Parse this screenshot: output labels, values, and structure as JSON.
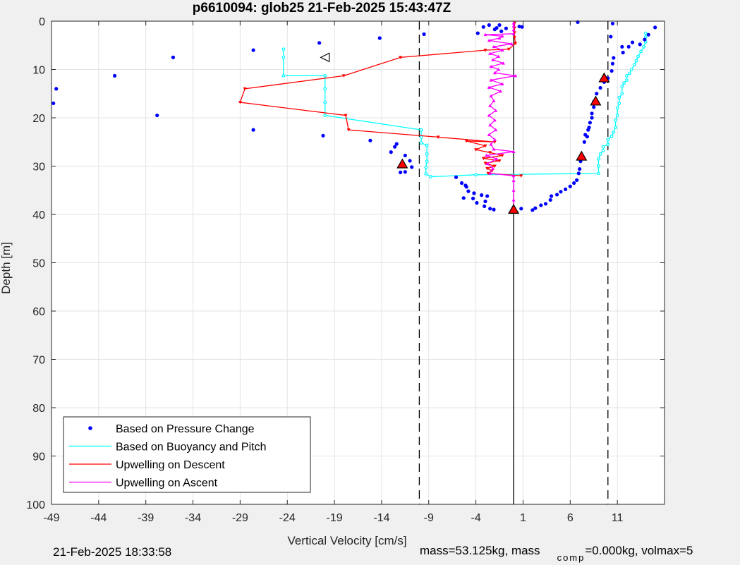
{
  "chart_data": {
    "type": "scatter",
    "title": "p6610094: glob25 21-Feb-2025 15:43:47Z",
    "xlabel": "Vertical Velocity [cm/s]",
    "ylabel": "Depth [m]",
    "xlim": [
      -49,
      16
    ],
    "ylim": [
      0,
      100
    ],
    "y_reversed": true,
    "xticks": [
      -49,
      -44,
      -39,
      -34,
      -29,
      -24,
      -19,
      -14,
      -9,
      -4,
      1,
      6,
      11
    ],
    "yticks": [
      0,
      10,
      20,
      30,
      40,
      50,
      60,
      70,
      80,
      90,
      100
    ],
    "grid": true,
    "legend_location": "bottom-left",
    "vertical_lines": [
      {
        "x": -10,
        "style": "dashed"
      },
      {
        "x": 0,
        "style": "solid"
      },
      {
        "x": 10,
        "style": "dashed"
      }
    ],
    "series": [
      {
        "name": "Based on Pressure Change",
        "style": "dots",
        "color": "#0000ff",
        "points": [
          [
            -48.8,
            17
          ],
          [
            -48.5,
            14
          ],
          [
            -42.3,
            11.3
          ],
          [
            -37.8,
            19.5
          ],
          [
            -36.1,
            7.5
          ],
          [
            -27.6,
            6
          ],
          [
            -27.6,
            22.5
          ],
          [
            -20.6,
            4.5
          ],
          [
            -20.2,
            23.7
          ],
          [
            -14.2,
            3.5
          ],
          [
            -15.2,
            24.7
          ],
          [
            -12.6,
            26
          ],
          [
            -12.4,
            25.4
          ],
          [
            -13,
            27.1
          ],
          [
            -11.5,
            27.8
          ],
          [
            -11,
            28.9
          ],
          [
            -10.8,
            30.2
          ],
          [
            -12,
            31.3
          ],
          [
            -11.5,
            31.2
          ],
          [
            -9.5,
            2.7
          ],
          [
            -3.8,
            2.5
          ],
          [
            -6.1,
            32.3
          ],
          [
            -5.5,
            33.5
          ],
          [
            -5.1,
            34
          ],
          [
            -4.8,
            35.2
          ],
          [
            -4.3,
            36.7
          ],
          [
            -3.9,
            37.6
          ],
          [
            -3.1,
            38.3
          ],
          [
            -2.5,
            38.8
          ],
          [
            -2.1,
            39
          ],
          [
            -5,
            34.3
          ],
          [
            -5.3,
            36.6
          ],
          [
            -4.2,
            35.6
          ],
          [
            -3.4,
            36
          ],
          [
            -3,
            37.3
          ],
          [
            -2.8,
            36.2
          ],
          [
            -3.2,
            1.2
          ],
          [
            -2.6,
            0.8
          ],
          [
            -2,
            1.7
          ],
          [
            -1.8,
            1.4
          ],
          [
            -1.3,
            2.1
          ],
          [
            -0.8,
            1.5
          ],
          [
            0.6,
            1.1
          ],
          [
            0.9,
            1.2
          ],
          [
            -1.5,
            0.8
          ],
          [
            0.8,
            38.8
          ],
          [
            2,
            39.1
          ],
          [
            2.3,
            38.7
          ],
          [
            2.9,
            38.1
          ],
          [
            3.4,
            37.8
          ],
          [
            3.9,
            37
          ],
          [
            4,
            36.2
          ],
          [
            4.6,
            35.9
          ],
          [
            5,
            35.3
          ],
          [
            5.5,
            34.8
          ],
          [
            6,
            34.2
          ],
          [
            6.4,
            33.5
          ],
          [
            6.7,
            32.9
          ],
          [
            6.9,
            31.5
          ],
          [
            7,
            30.6
          ],
          [
            7.1,
            29
          ],
          [
            7.2,
            27.7
          ],
          [
            7.5,
            25
          ],
          [
            7.6,
            23.5
          ],
          [
            7.8,
            23.9
          ],
          [
            7.9,
            22.5
          ],
          [
            8,
            22
          ],
          [
            8.1,
            21
          ],
          [
            8.3,
            20
          ],
          [
            8.3,
            19.1
          ],
          [
            8.5,
            17.8
          ],
          [
            8.5,
            16.7
          ],
          [
            8.8,
            15
          ],
          [
            9.2,
            13.8
          ],
          [
            9.6,
            12.6
          ],
          [
            10,
            11.8
          ],
          [
            10.4,
            10.3
          ],
          [
            10.5,
            8.8
          ],
          [
            10.6,
            7.6
          ],
          [
            11.6,
            6.5
          ],
          [
            12.2,
            5.3
          ],
          [
            12.6,
            4.4
          ],
          [
            13.4,
            4.8
          ],
          [
            13.9,
            3.8
          ],
          [
            14.3,
            2.8
          ],
          [
            15,
            1.3
          ],
          [
            11.5,
            5.3
          ],
          [
            10.3,
            3.2
          ],
          [
            10.5,
            0.5
          ],
          [
            6.8,
            0.2
          ]
        ]
      },
      {
        "name": "Based on Buoyancy and Pitch",
        "style": "line-markers",
        "color": "#00ffff",
        "points": [
          [
            -24.4,
            5.8
          ],
          [
            -24.4,
            7.5
          ],
          [
            -24.4,
            11.3
          ],
          [
            -20,
            11.3
          ],
          [
            -20,
            14
          ],
          [
            -20,
            16.8
          ],
          [
            -20,
            19.5
          ],
          [
            -9.8,
            22.5
          ],
          [
            -9.8,
            24
          ],
          [
            -9.8,
            25.2
          ],
          [
            -9.2,
            25.7
          ],
          [
            -9.2,
            27.5
          ],
          [
            -9.2,
            29
          ],
          [
            -9.3,
            30.3
          ],
          [
            -9.3,
            31.6
          ],
          [
            -8.8,
            32.2
          ],
          [
            -4,
            31.8
          ],
          [
            9,
            31.5
          ],
          [
            9,
            30
          ],
          [
            9,
            28.5
          ],
          [
            9.2,
            27.5
          ],
          [
            9.5,
            26.8
          ],
          [
            9.5,
            26
          ],
          [
            10,
            25.5
          ],
          [
            10,
            24.5
          ],
          [
            10.4,
            23.8
          ],
          [
            10.6,
            23
          ],
          [
            10.8,
            22
          ],
          [
            10.8,
            20.5
          ],
          [
            11,
            19.5
          ],
          [
            11,
            18
          ],
          [
            11.2,
            17
          ],
          [
            11.2,
            15.8
          ],
          [
            11.5,
            15
          ],
          [
            11.5,
            13.5
          ],
          [
            11.7,
            12.8
          ],
          [
            12,
            12.2
          ],
          [
            12,
            11.3
          ],
          [
            12.3,
            10.8
          ],
          [
            12.5,
            10
          ],
          [
            12.8,
            9
          ],
          [
            13,
            8.2
          ],
          [
            13.2,
            7.3
          ],
          [
            13.5,
            6.3
          ],
          [
            13.8,
            5.3
          ],
          [
            14,
            4.3
          ],
          [
            14,
            3.3
          ],
          [
            14,
            2.5
          ]
        ]
      },
      {
        "name": "Upwelling on Descent",
        "style": "line-markers",
        "color": "#ff0000",
        "points": [
          [
            0.1,
            0.4
          ],
          [
            0.1,
            1.4
          ],
          [
            0.1,
            2.4
          ],
          [
            0.1,
            3.4
          ],
          [
            0.2,
            4.6
          ],
          [
            -0.5,
            5.8
          ],
          [
            -3,
            6
          ],
          [
            -12,
            7.5
          ],
          [
            -18,
            11.3
          ],
          [
            -28.5,
            14
          ],
          [
            -29,
            16.8
          ],
          [
            -17.8,
            19.5
          ],
          [
            -17.5,
            22.5
          ],
          [
            -8,
            24
          ],
          [
            -2,
            25
          ],
          [
            -5,
            24.8
          ],
          [
            -3,
            25.8
          ],
          [
            -4,
            26.6
          ],
          [
            -2.5,
            27.2
          ],
          [
            -1.2,
            27.8
          ],
          [
            -3.2,
            28.4
          ],
          [
            -1.5,
            28.9
          ],
          [
            -3,
            29.4
          ],
          [
            -2,
            30
          ],
          [
            -2.8,
            30.5
          ],
          [
            -2.3,
            31
          ],
          [
            -2.7,
            31.5
          ],
          [
            0.8,
            32
          ]
        ]
      },
      {
        "name": "Upwelling on Ascent",
        "style": "line-markers",
        "color": "#ff00ff",
        "points": [
          [
            0,
            38.8
          ],
          [
            0,
            37
          ],
          [
            0,
            35
          ],
          [
            0,
            33
          ],
          [
            0,
            32
          ],
          [
            -2.5,
            31.5
          ],
          [
            -2.2,
            30.5
          ],
          [
            -2.8,
            29.5
          ],
          [
            -1.8,
            28.5
          ],
          [
            -2.9,
            27.8
          ],
          [
            0,
            27
          ],
          [
            -2.1,
            26.5
          ],
          [
            -2.4,
            25.5
          ],
          [
            -2,
            24.5
          ],
          [
            -2.6,
            23.5
          ],
          [
            -1.9,
            22.5
          ],
          [
            -2.5,
            21.5
          ],
          [
            -2,
            20.5
          ],
          [
            -2.6,
            19.5
          ],
          [
            -1.9,
            18.5
          ],
          [
            -2.5,
            17.5
          ],
          [
            -2.1,
            16.5
          ],
          [
            -2.4,
            15.5
          ],
          [
            -1.4,
            14.5
          ],
          [
            -2.6,
            13.7
          ],
          [
            -1.2,
            13
          ],
          [
            -2.4,
            12.2
          ],
          [
            0.2,
            11.3
          ],
          [
            -2,
            10.7
          ],
          [
            -1.6,
            10
          ],
          [
            -2.4,
            9.4
          ],
          [
            -1.1,
            8.7
          ],
          [
            -2.2,
            8
          ],
          [
            -1.6,
            7.3
          ],
          [
            -2.5,
            6.7
          ],
          [
            -1.2,
            6
          ],
          [
            -2.1,
            5.3
          ],
          [
            -0.2,
            4.7
          ],
          [
            -2.6,
            4
          ],
          [
            -1.5,
            3.5
          ],
          [
            -1.2,
            3.1
          ],
          [
            -3,
            2.8
          ],
          [
            0,
            2.6
          ],
          [
            0,
            1.8
          ],
          [
            0,
            1
          ],
          [
            0,
            0.4
          ]
        ]
      },
      {
        "name": "",
        "style": "triangles",
        "color": "#ff0000",
        "points": [
          [
            -11.8,
            29.6
          ],
          [
            0,
            39
          ],
          [
            7.2,
            28
          ],
          [
            8.7,
            16.6
          ],
          [
            9.6,
            11.8
          ]
        ]
      }
    ],
    "annotations": [
      {
        "type": "open-triangle-left",
        "x": -20,
        "y": 7.5
      }
    ]
  },
  "footer": {
    "timestamp": "21-Feb-2025 18:33:58",
    "mass_text": "mass=53.125kg, mass",
    "comp_sub": "comp",
    "volmax_text": "=0.000kg, volmax=5"
  }
}
